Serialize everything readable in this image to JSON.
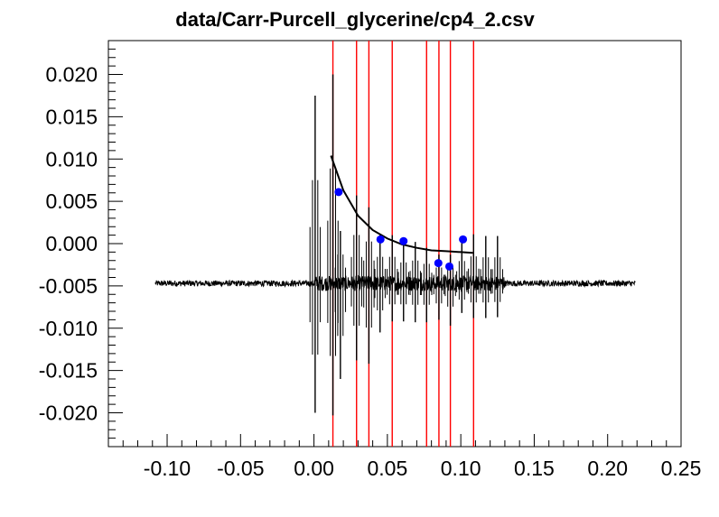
{
  "chart_data": {
    "type": "scatter",
    "title": "data/Carr-Purcell_glycerine/cp4_2.csv",
    "xlabel": "",
    "ylabel": "",
    "xlim": [
      -0.14,
      0.25
    ],
    "ylim": [
      -0.024,
      0.024
    ],
    "x_ticks": [
      -0.1,
      -0.05,
      0.0,
      0.05,
      0.1,
      0.15,
      0.2,
      0.25
    ],
    "x_tick_labels": [
      "-0.10",
      "-0.05",
      "0.00",
      "0.05",
      "0.10",
      "0.15",
      "0.20",
      "0.25"
    ],
    "y_ticks": [
      -0.02,
      -0.015,
      -0.01,
      -0.005,
      0.0,
      0.005,
      0.01,
      0.015,
      0.02
    ],
    "y_tick_labels": [
      "-0.020",
      "-0.015",
      "-0.010",
      "-0.005",
      "0.000",
      "0.005",
      "0.010",
      "0.015",
      "0.020"
    ],
    "grid": false,
    "colors": {
      "trace": "#000000",
      "markers": "#0000ff",
      "vlines": "#ff0000",
      "fit": "#000000"
    },
    "markers": {
      "x": [
        0.0168,
        0.0453,
        0.061,
        0.0847,
        0.0922,
        0.1015
      ],
      "y": [
        0.0061,
        0.0005,
        0.0003,
        -0.0023,
        -0.0027,
        0.0005
      ]
    },
    "vlines": [
      0.0129,
      0.029,
      0.0374,
      0.0533,
      0.0767,
      0.0851,
      0.0929,
      0.1087
    ],
    "fit_curve": {
      "x": [
        0.0116,
        0.02,
        0.03,
        0.04,
        0.05,
        0.06,
        0.07,
        0.08,
        0.09,
        0.1,
        0.1082
      ],
      "y": [
        0.0104,
        0.0063,
        0.0033,
        0.0016,
        0.0006,
        -0.0001,
        -0.0005,
        -0.0008,
        -0.0009,
        -0.001,
        -0.0011
      ]
    },
    "signal": {
      "baseline": -0.0047,
      "x_start": -0.108,
      "x_end": 0.219,
      "echo_x": [
        0.0008,
        0.0129,
        0.018,
        0.029,
        0.0374,
        0.045,
        0.0533,
        0.061,
        0.069,
        0.0767,
        0.0851,
        0.0929,
        0.1007,
        0.1087,
        0.117,
        0.125
      ],
      "echo_top": [
        0.0175,
        0.02,
        0.0015,
        0.0057,
        0.0043,
        0.001,
        0.001,
        -0.0002,
        0.0002,
        -0.0005,
        -0.0013,
        -0.0013,
        0.0001,
        0.0011,
        0.0009,
        0.0009
      ],
      "echo_bottom": [
        -0.02,
        -0.0203,
        -0.016,
        -0.0138,
        -0.0142,
        -0.0105,
        -0.0092,
        -0.0092,
        -0.0093,
        -0.0093,
        -0.009,
        -0.0097,
        -0.0082,
        -0.0088,
        -0.0088,
        -0.0087
      ]
    }
  }
}
